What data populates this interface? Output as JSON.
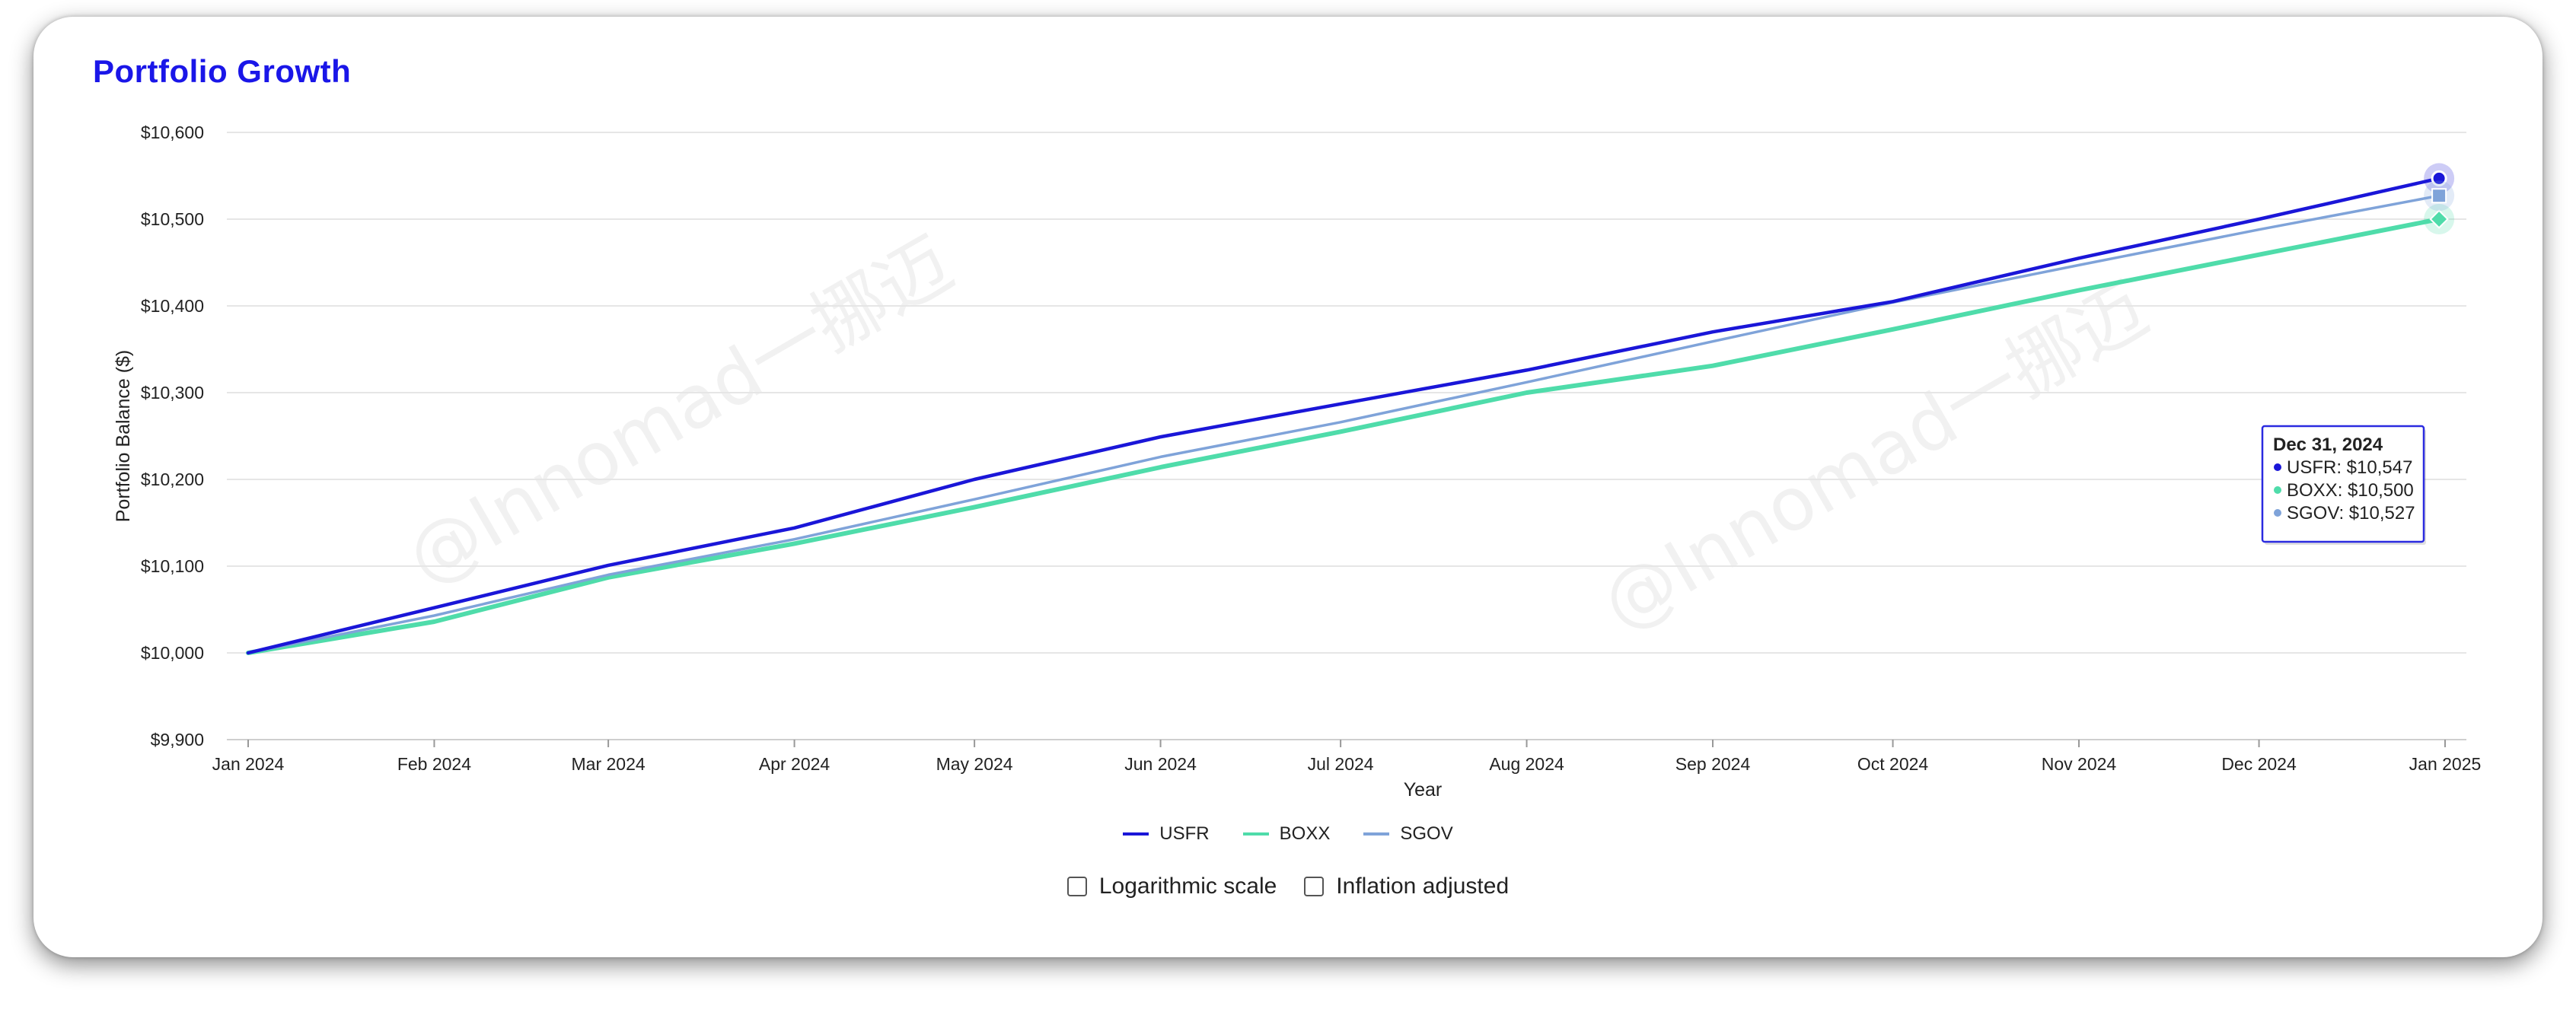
{
  "title": "Portfolio Growth",
  "watermarks": [
    "@Innomad一挪迈",
    "@Innomad一挪迈"
  ],
  "colors": {
    "title": "#1a16e8",
    "USFR": "#1a16d8",
    "BOXX": "#4fdcaa",
    "SGOV": "#7fa3d9",
    "grid": "#e6e6e6"
  },
  "chart_data": {
    "type": "line",
    "title": "Portfolio Growth",
    "xlabel": "Year",
    "ylabel": "Portfolio Balance ($)",
    "ylim": [
      9900,
      10600
    ],
    "yticks": [
      9900,
      10000,
      10100,
      10200,
      10300,
      10400,
      10500,
      10600
    ],
    "ytick_labels": [
      "$9,900",
      "$10,000",
      "$10,100",
      "$10,200",
      "$10,300",
      "$10,400",
      "$10,500",
      "$10,600"
    ],
    "x": [
      "2024-01-01",
      "2024-02-01",
      "2024-03-01",
      "2024-04-01",
      "2024-05-01",
      "2024-06-01",
      "2024-07-01",
      "2024-08-01",
      "2024-09-01",
      "2024-10-01",
      "2024-11-01",
      "2024-12-01",
      "2024-12-31"
    ],
    "xtick_dates": [
      "2024-01-01",
      "2024-02-01",
      "2024-03-01",
      "2024-04-01",
      "2024-05-01",
      "2024-06-01",
      "2024-07-01",
      "2024-08-01",
      "2024-09-01",
      "2024-10-01",
      "2024-11-01",
      "2024-12-01",
      "2025-01-01"
    ],
    "xtick_labels": [
      "Jan 2024",
      "Feb 2024",
      "Mar 2024",
      "Apr 2024",
      "May 2024",
      "Jun 2024",
      "Jul 2024",
      "Aug 2024",
      "Sep 2024",
      "Oct 2024",
      "Nov 2024",
      "Dec 2024",
      "Jan 2025"
    ],
    "series": [
      {
        "name": "USFR",
        "values": [
          10000,
          10052,
          10101,
          10144,
          10200,
          10249,
          10287,
          10326,
          10370,
          10405,
          10455,
          10500,
          10547
        ]
      },
      {
        "name": "BOXX",
        "values": [
          10000,
          10036,
          10087,
          10126,
          10168,
          10214,
          10255,
          10300,
          10331,
          10373,
          10418,
          10459,
          10500
        ]
      },
      {
        "name": "SGOV",
        "values": [
          10000,
          10043,
          10090,
          10131,
          10177,
          10226,
          10266,
          10312,
          10359,
          10404,
          10447,
          10488,
          10527
        ]
      }
    ],
    "grid": true,
    "legend": "bottom-center",
    "tooltip": {
      "title": "Dec 31, 2024",
      "lines": [
        "USFR: $10,547",
        "BOXX: $10,500",
        "SGOV: $10,527"
      ]
    }
  },
  "legend": [
    {
      "name": "USFR",
      "label": "USFR"
    },
    {
      "name": "BOXX",
      "label": "BOXX"
    },
    {
      "name": "SGOV",
      "label": "SGOV"
    }
  ],
  "options": {
    "log_scale": {
      "label": "Logarithmic scale",
      "checked": false
    },
    "inflation": {
      "label": "Inflation adjusted",
      "checked": false
    }
  }
}
